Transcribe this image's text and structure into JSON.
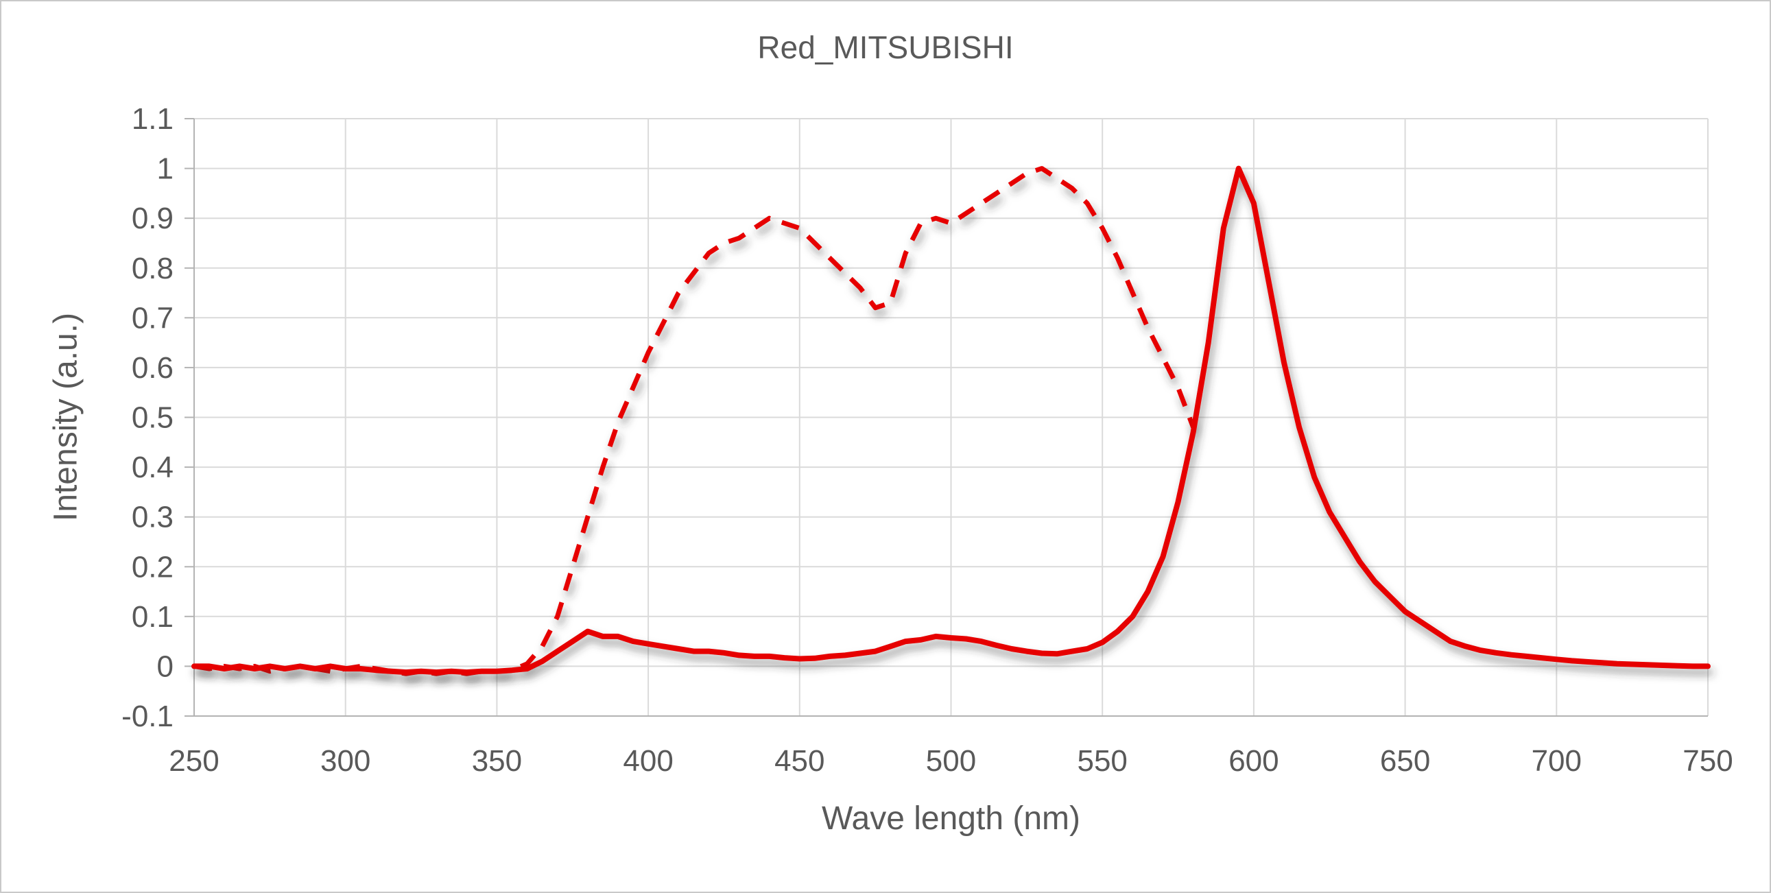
{
  "chart": {
    "title": "Red_MITSUBISHI",
    "x_axis_title": "Wave length (nm)",
    "y_axis_title": "Intensity (a.u.)"
  },
  "chart_data": {
    "type": "line",
    "title": "Red_MITSUBISHI",
    "xlabel": "Wave length (nm)",
    "ylabel": "Intensity (a.u.)",
    "xlim": [
      250,
      750
    ],
    "ylim": [
      -0.1,
      1.1
    ],
    "x_ticks": [
      250,
      300,
      350,
      400,
      450,
      500,
      550,
      600,
      650,
      700,
      750
    ],
    "y_ticks": [
      -0.1,
      0,
      0.1,
      0.2,
      0.3,
      0.4,
      0.5,
      0.6,
      0.7,
      0.8,
      0.9,
      1,
      1.1
    ],
    "grid": true,
    "legend": "none",
    "line_color": "#e60000",
    "series": [
      {
        "id": "dashed-series",
        "name": "Dashed curve",
        "style": "dashed",
        "color": "#e60000",
        "points": [
          [
            250,
            0
          ],
          [
            255,
            -0.005
          ],
          [
            260,
            0
          ],
          [
            265,
            -0.005
          ],
          [
            270,
            0
          ],
          [
            275,
            -0.01
          ],
          [
            280,
            -0.005
          ],
          [
            285,
            0
          ],
          [
            290,
            -0.005
          ],
          [
            295,
            -0.01
          ],
          [
            300,
            -0.005
          ],
          [
            305,
            0
          ],
          [
            310,
            -0.005
          ],
          [
            315,
            -0.01
          ],
          [
            320,
            -0.015
          ],
          [
            325,
            -0.01
          ],
          [
            330,
            -0.015
          ],
          [
            335,
            -0.01
          ],
          [
            340,
            -0.015
          ],
          [
            345,
            -0.01
          ],
          [
            350,
            -0.01
          ],
          [
            355,
            -0.008
          ],
          [
            360,
            0.005
          ],
          [
            365,
            0.04
          ],
          [
            370,
            0.1
          ],
          [
            375,
            0.2
          ],
          [
            380,
            0.3
          ],
          [
            385,
            0.4
          ],
          [
            390,
            0.49
          ],
          [
            395,
            0.56
          ],
          [
            400,
            0.63
          ],
          [
            405,
            0.69
          ],
          [
            410,
            0.75
          ],
          [
            415,
            0.79
          ],
          [
            420,
            0.83
          ],
          [
            425,
            0.85
          ],
          [
            430,
            0.86
          ],
          [
            435,
            0.88
          ],
          [
            440,
            0.9
          ],
          [
            445,
            0.89
          ],
          [
            450,
            0.88
          ],
          [
            455,
            0.85
          ],
          [
            460,
            0.82
          ],
          [
            465,
            0.79
          ],
          [
            470,
            0.76
          ],
          [
            475,
            0.72
          ],
          [
            480,
            0.73
          ],
          [
            485,
            0.83
          ],
          [
            490,
            0.89
          ],
          [
            495,
            0.9
          ],
          [
            500,
            0.89
          ],
          [
            505,
            0.91
          ],
          [
            510,
            0.93
          ],
          [
            515,
            0.95
          ],
          [
            520,
            0.97
          ],
          [
            525,
            0.99
          ],
          [
            530,
            1
          ],
          [
            535,
            0.98
          ],
          [
            540,
            0.96
          ],
          [
            545,
            0.93
          ],
          [
            550,
            0.88
          ],
          [
            555,
            0.82
          ],
          [
            560,
            0.75
          ],
          [
            565,
            0.68
          ],
          [
            570,
            0.62
          ],
          [
            575,
            0.56
          ],
          [
            580,
            0.48
          ]
        ]
      },
      {
        "id": "solid-series",
        "name": "Solid curve",
        "style": "solid",
        "color": "#e60000",
        "points": [
          [
            250,
            0
          ],
          [
            255,
            0
          ],
          [
            260,
            -0.005
          ],
          [
            265,
            0
          ],
          [
            270,
            -0.005
          ],
          [
            275,
            0
          ],
          [
            280,
            -0.005
          ],
          [
            285,
            0
          ],
          [
            290,
            -0.005
          ],
          [
            295,
            0
          ],
          [
            300,
            -0.005
          ],
          [
            305,
            -0.005
          ],
          [
            310,
            -0.008
          ],
          [
            315,
            -0.01
          ],
          [
            320,
            -0.012
          ],
          [
            325,
            -0.01
          ],
          [
            330,
            -0.012
          ],
          [
            335,
            -0.01
          ],
          [
            340,
            -0.012
          ],
          [
            345,
            -0.01
          ],
          [
            350,
            -0.01
          ],
          [
            355,
            -0.008
          ],
          [
            360,
            -0.005
          ],
          [
            365,
            0.01
          ],
          [
            370,
            0.03
          ],
          [
            375,
            0.05
          ],
          [
            380,
            0.07
          ],
          [
            385,
            0.06
          ],
          [
            390,
            0.06
          ],
          [
            395,
            0.05
          ],
          [
            400,
            0.045
          ],
          [
            405,
            0.04
          ],
          [
            410,
            0.035
          ],
          [
            415,
            0.03
          ],
          [
            420,
            0.03
          ],
          [
            425,
            0.027
          ],
          [
            430,
            0.022
          ],
          [
            435,
            0.02
          ],
          [
            440,
            0.02
          ],
          [
            445,
            0.017
          ],
          [
            450,
            0.015
          ],
          [
            455,
            0.016
          ],
          [
            460,
            0.02
          ],
          [
            465,
            0.022
          ],
          [
            470,
            0.026
          ],
          [
            475,
            0.03
          ],
          [
            480,
            0.04
          ],
          [
            485,
            0.05
          ],
          [
            490,
            0.053
          ],
          [
            495,
            0.06
          ],
          [
            500,
            0.057
          ],
          [
            505,
            0.055
          ],
          [
            510,
            0.05
          ],
          [
            515,
            0.042
          ],
          [
            520,
            0.035
          ],
          [
            525,
            0.03
          ],
          [
            530,
            0.026
          ],
          [
            535,
            0.025
          ],
          [
            540,
            0.03
          ],
          [
            545,
            0.035
          ],
          [
            550,
            0.048
          ],
          [
            555,
            0.07
          ],
          [
            560,
            0.1
          ],
          [
            565,
            0.15
          ],
          [
            570,
            0.22
          ],
          [
            575,
            0.33
          ],
          [
            580,
            0.47
          ],
          [
            585,
            0.65
          ],
          [
            590,
            0.88
          ],
          [
            595,
            1
          ],
          [
            600,
            0.93
          ],
          [
            605,
            0.77
          ],
          [
            610,
            0.61
          ],
          [
            615,
            0.48
          ],
          [
            620,
            0.38
          ],
          [
            625,
            0.31
          ],
          [
            630,
            0.26
          ],
          [
            635,
            0.21
          ],
          [
            640,
            0.17
          ],
          [
            645,
            0.14
          ],
          [
            650,
            0.11
          ],
          [
            655,
            0.09
          ],
          [
            660,
            0.07
          ],
          [
            665,
            0.05
          ],
          [
            670,
            0.04
          ],
          [
            675,
            0.032
          ],
          [
            680,
            0.027
          ],
          [
            685,
            0.023
          ],
          [
            690,
            0.02
          ],
          [
            695,
            0.017
          ],
          [
            700,
            0.014
          ],
          [
            705,
            0.011
          ],
          [
            710,
            0.009
          ],
          [
            715,
            0.007
          ],
          [
            720,
            0.005
          ],
          [
            725,
            0.004
          ],
          [
            730,
            0.003
          ],
          [
            735,
            0.002
          ],
          [
            740,
            0.001
          ],
          [
            745,
            0
          ],
          [
            750,
            0
          ]
        ]
      }
    ]
  }
}
